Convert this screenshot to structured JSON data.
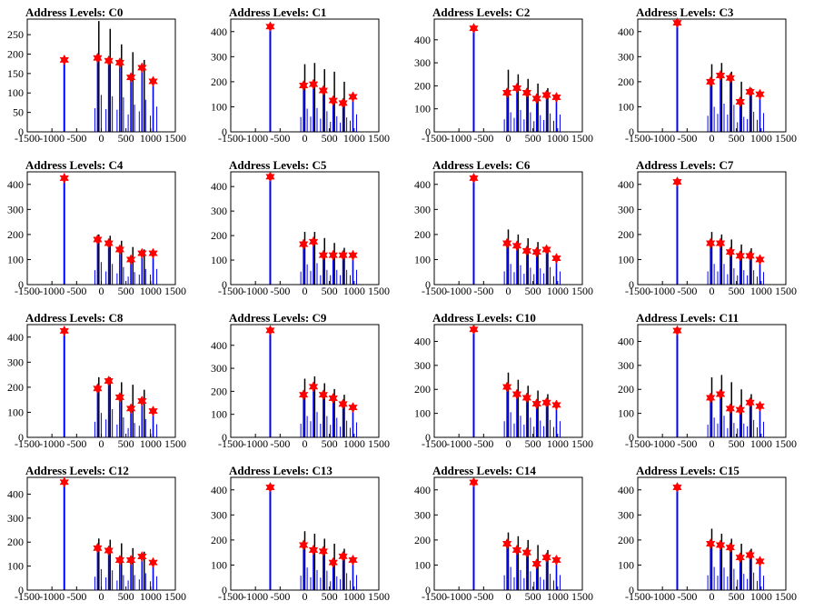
{
  "chart_data": [
    {
      "type": "histogram",
      "title": "Address Levels: C0",
      "xlim": [
        -1500,
        1500
      ],
      "ylim": [
        0,
        290
      ],
      "xticks": [
        -1500,
        -1000,
        -500,
        0,
        500,
        1000,
        1500
      ],
      "yticks": [
        0,
        50,
        100,
        150,
        200,
        250
      ],
      "peaks": [
        {
          "x": -750,
          "y": 185
        },
        {
          "x": -75,
          "y": 190
        },
        {
          "x": 150,
          "y": 183
        },
        {
          "x": 375,
          "y": 178
        },
        {
          "x": 600,
          "y": 140
        },
        {
          "x": 825,
          "y": 165
        },
        {
          "x": 1050,
          "y": 130
        }
      ],
      "black_spikes": [
        {
          "x": -50,
          "y": 285
        },
        {
          "x": 180,
          "y": 265
        },
        {
          "x": 410,
          "y": 225
        },
        {
          "x": 640,
          "y": 205
        },
        {
          "x": 870,
          "y": 185
        }
      ]
    },
    {
      "type": "histogram",
      "title": "Address Levels: C1",
      "xlim": [
        -1500,
        1500
      ],
      "ylim": [
        0,
        450
      ],
      "xticks": [
        -1500,
        -1000,
        -500,
        0,
        500,
        1000,
        1500
      ],
      "yticks": [
        0,
        100,
        200,
        300,
        400
      ],
      "peaks": [
        {
          "x": -700,
          "y": 420
        },
        {
          "x": -25,
          "y": 185
        },
        {
          "x": 175,
          "y": 190
        },
        {
          "x": 375,
          "y": 165
        },
        {
          "x": 575,
          "y": 125
        },
        {
          "x": 775,
          "y": 115
        },
        {
          "x": 975,
          "y": 140
        }
      ],
      "black_spikes": [
        {
          "x": 0,
          "y": 270
        },
        {
          "x": 200,
          "y": 275
        },
        {
          "x": 400,
          "y": 250
        },
        {
          "x": 600,
          "y": 240
        },
        {
          "x": 800,
          "y": 200
        }
      ]
    },
    {
      "type": "histogram",
      "title": "Address Levels: C2",
      "xlim": [
        -1500,
        1500
      ],
      "ylim": [
        0,
        490
      ],
      "xticks": [
        -1500,
        -1000,
        -500,
        0,
        500,
        1000,
        1500
      ],
      "yticks": [
        0,
        100,
        200,
        300,
        400
      ],
      "peaks": [
        {
          "x": -700,
          "y": 450
        },
        {
          "x": -25,
          "y": 170
        },
        {
          "x": 175,
          "y": 190
        },
        {
          "x": 375,
          "y": 170
        },
        {
          "x": 575,
          "y": 145
        },
        {
          "x": 775,
          "y": 160
        },
        {
          "x": 975,
          "y": 150
        }
      ],
      "black_spikes": [
        {
          "x": 0,
          "y": 270
        },
        {
          "x": 200,
          "y": 250
        },
        {
          "x": 400,
          "y": 230
        },
        {
          "x": 600,
          "y": 210
        },
        {
          "x": 800,
          "y": 190
        }
      ]
    },
    {
      "type": "histogram",
      "title": "Address Levels: C3",
      "xlim": [
        -1500,
        1500
      ],
      "ylim": [
        0,
        450
      ],
      "xticks": [
        -1500,
        -1000,
        -500,
        0,
        500,
        1000,
        1500
      ],
      "yticks": [
        0,
        100,
        200,
        300,
        400
      ],
      "peaks": [
        {
          "x": -700,
          "y": 435
        },
        {
          "x": -25,
          "y": 200
        },
        {
          "x": 175,
          "y": 225
        },
        {
          "x": 375,
          "y": 215
        },
        {
          "x": 575,
          "y": 120
        },
        {
          "x": 775,
          "y": 160
        },
        {
          "x": 975,
          "y": 150
        }
      ],
      "black_spikes": [
        {
          "x": 0,
          "y": 270
        },
        {
          "x": 200,
          "y": 275
        },
        {
          "x": 400,
          "y": 240
        },
        {
          "x": 600,
          "y": 200
        },
        {
          "x": 800,
          "y": 175
        }
      ]
    },
    {
      "type": "histogram",
      "title": "Address Levels: C4",
      "xlim": [
        -1500,
        1500
      ],
      "ylim": [
        0,
        450
      ],
      "xticks": [
        -1500,
        -1000,
        -500,
        0,
        500,
        1000,
        1500
      ],
      "yticks": [
        0,
        100,
        200,
        300,
        400
      ],
      "peaks": [
        {
          "x": -750,
          "y": 425
        },
        {
          "x": -75,
          "y": 180
        },
        {
          "x": 150,
          "y": 165
        },
        {
          "x": 375,
          "y": 140
        },
        {
          "x": 600,
          "y": 100
        },
        {
          "x": 825,
          "y": 125
        },
        {
          "x": 1050,
          "y": 125
        }
      ],
      "black_spikes": [
        {
          "x": -50,
          "y": 200
        },
        {
          "x": 180,
          "y": 195
        },
        {
          "x": 410,
          "y": 175
        },
        {
          "x": 640,
          "y": 150
        },
        {
          "x": 870,
          "y": 140
        }
      ]
    },
    {
      "type": "histogram",
      "title": "Address Levels: C5",
      "xlim": [
        -1500,
        1500
      ],
      "ylim": [
        0,
        460
      ],
      "xticks": [
        -1500,
        -1000,
        -500,
        0,
        500,
        1000,
        1500
      ],
      "yticks": [
        0,
        100,
        200,
        300,
        400
      ],
      "peaks": [
        {
          "x": -700,
          "y": 440
        },
        {
          "x": -25,
          "y": 165
        },
        {
          "x": 175,
          "y": 175
        },
        {
          "x": 375,
          "y": 120
        },
        {
          "x": 575,
          "y": 120
        },
        {
          "x": 775,
          "y": 120
        },
        {
          "x": 975,
          "y": 120
        }
      ],
      "black_spikes": [
        {
          "x": 0,
          "y": 215
        },
        {
          "x": 200,
          "y": 215
        },
        {
          "x": 400,
          "y": 190
        },
        {
          "x": 600,
          "y": 170
        },
        {
          "x": 800,
          "y": 150
        }
      ]
    },
    {
      "type": "histogram",
      "title": "Address Levels: C6",
      "xlim": [
        -1500,
        1500
      ],
      "ylim": [
        0,
        450
      ],
      "xticks": [
        -1500,
        -1000,
        -500,
        0,
        500,
        1000,
        1500
      ],
      "yticks": [
        0,
        100,
        200,
        300,
        400
      ],
      "peaks": [
        {
          "x": -700,
          "y": 425
        },
        {
          "x": -25,
          "y": 165
        },
        {
          "x": 175,
          "y": 155
        },
        {
          "x": 375,
          "y": 135
        },
        {
          "x": 575,
          "y": 130
        },
        {
          "x": 775,
          "y": 140
        },
        {
          "x": 975,
          "y": 105
        }
      ],
      "black_spikes": [
        {
          "x": 0,
          "y": 220
        },
        {
          "x": 200,
          "y": 200
        },
        {
          "x": 400,
          "y": 185
        },
        {
          "x": 600,
          "y": 170
        },
        {
          "x": 800,
          "y": 150
        }
      ]
    },
    {
      "type": "histogram",
      "title": "Address Levels: C7",
      "xlim": [
        -1500,
        1500
      ],
      "ylim": [
        0,
        450
      ],
      "xticks": [
        -1500,
        -1000,
        -500,
        0,
        500,
        1000,
        1500
      ],
      "yticks": [
        0,
        100,
        200,
        300,
        400
      ],
      "peaks": [
        {
          "x": -700,
          "y": 410
        },
        {
          "x": -25,
          "y": 165
        },
        {
          "x": 175,
          "y": 165
        },
        {
          "x": 375,
          "y": 130
        },
        {
          "x": 575,
          "y": 115
        },
        {
          "x": 775,
          "y": 115
        },
        {
          "x": 975,
          "y": 100
        }
      ],
      "black_spikes": [
        {
          "x": 0,
          "y": 210
        },
        {
          "x": 200,
          "y": 200
        },
        {
          "x": 400,
          "y": 180
        },
        {
          "x": 600,
          "y": 160
        },
        {
          "x": 800,
          "y": 145
        }
      ]
    },
    {
      "type": "histogram",
      "title": "Address Levels: C8",
      "xlim": [
        -1500,
        1500
      ],
      "ylim": [
        0,
        450
      ],
      "xticks": [
        -1500,
        -1000,
        -500,
        0,
        500,
        1000,
        1500
      ],
      "yticks": [
        0,
        100,
        200,
        300,
        400
      ],
      "peaks": [
        {
          "x": -750,
          "y": 425
        },
        {
          "x": -75,
          "y": 195
        },
        {
          "x": 150,
          "y": 225
        },
        {
          "x": 375,
          "y": 160
        },
        {
          "x": 600,
          "y": 115
        },
        {
          "x": 825,
          "y": 145
        },
        {
          "x": 1050,
          "y": 105
        }
      ],
      "black_spikes": [
        {
          "x": -50,
          "y": 240
        },
        {
          "x": 180,
          "y": 240
        },
        {
          "x": 410,
          "y": 220
        },
        {
          "x": 640,
          "y": 210
        },
        {
          "x": 870,
          "y": 190
        }
      ]
    },
    {
      "type": "histogram",
      "title": "Address Levels: C9",
      "xlim": [
        -1500,
        1500
      ],
      "ylim": [
        0,
        490
      ],
      "xticks": [
        -1500,
        -1000,
        -500,
        0,
        500,
        1000,
        1500
      ],
      "yticks": [
        0,
        100,
        200,
        300,
        400
      ],
      "peaks": [
        {
          "x": -700,
          "y": 465
        },
        {
          "x": -25,
          "y": 185
        },
        {
          "x": 175,
          "y": 220
        },
        {
          "x": 375,
          "y": 185
        },
        {
          "x": 575,
          "y": 170
        },
        {
          "x": 775,
          "y": 145
        },
        {
          "x": 975,
          "y": 130
        }
      ],
      "black_spikes": [
        {
          "x": 0,
          "y": 255
        },
        {
          "x": 200,
          "y": 265
        },
        {
          "x": 400,
          "y": 235
        },
        {
          "x": 600,
          "y": 210
        },
        {
          "x": 800,
          "y": 185
        }
      ]
    },
    {
      "type": "histogram",
      "title": "Address Levels: C10",
      "xlim": [
        -1500,
        1500
      ],
      "ylim": [
        0,
        470
      ],
      "xticks": [
        -1500,
        -1000,
        -500,
        0,
        500,
        1000,
        1500
      ],
      "yticks": [
        0,
        100,
        200,
        300,
        400
      ],
      "peaks": [
        {
          "x": -700,
          "y": 450
        },
        {
          "x": -25,
          "y": 210
        },
        {
          "x": 175,
          "y": 180
        },
        {
          "x": 375,
          "y": 165
        },
        {
          "x": 575,
          "y": 140
        },
        {
          "x": 775,
          "y": 145
        },
        {
          "x": 975,
          "y": 135
        }
      ],
      "black_spikes": [
        {
          "x": 0,
          "y": 270
        },
        {
          "x": 200,
          "y": 240
        },
        {
          "x": 400,
          "y": 215
        },
        {
          "x": 600,
          "y": 195
        },
        {
          "x": 800,
          "y": 180
        }
      ]
    },
    {
      "type": "histogram",
      "title": "Address Levels: C11",
      "xlim": [
        -1500,
        1500
      ],
      "ylim": [
        0,
        470
      ],
      "xticks": [
        -1500,
        -1000,
        -500,
        0,
        500,
        1000,
        1500
      ],
      "yticks": [
        0,
        100,
        200,
        300,
        400
      ],
      "peaks": [
        {
          "x": -700,
          "y": 445
        },
        {
          "x": -25,
          "y": 165
        },
        {
          "x": 175,
          "y": 180
        },
        {
          "x": 375,
          "y": 120
        },
        {
          "x": 575,
          "y": 115
        },
        {
          "x": 775,
          "y": 145
        },
        {
          "x": 975,
          "y": 130
        }
      ],
      "black_spikes": [
        {
          "x": 0,
          "y": 250
        },
        {
          "x": 200,
          "y": 260
        },
        {
          "x": 400,
          "y": 230
        },
        {
          "x": 600,
          "y": 200
        },
        {
          "x": 800,
          "y": 180
        }
      ]
    },
    {
      "type": "histogram",
      "title": "Address Levels: C12",
      "xlim": [
        -1500,
        1500
      ],
      "ylim": [
        0,
        470
      ],
      "xticks": [
        -1500,
        -1000,
        -500,
        0,
        500,
        1000,
        1500
      ],
      "yticks": [
        0,
        100,
        200,
        300,
        400
      ],
      "peaks": [
        {
          "x": -750,
          "y": 450
        },
        {
          "x": -75,
          "y": 175
        },
        {
          "x": 150,
          "y": 165
        },
        {
          "x": 375,
          "y": 125
        },
        {
          "x": 600,
          "y": 125
        },
        {
          "x": 825,
          "y": 140
        },
        {
          "x": 1050,
          "y": 115
        }
      ],
      "black_spikes": [
        {
          "x": -50,
          "y": 215
        },
        {
          "x": 180,
          "y": 210
        },
        {
          "x": 410,
          "y": 195
        },
        {
          "x": 640,
          "y": 175
        },
        {
          "x": 870,
          "y": 160
        }
      ]
    },
    {
      "type": "histogram",
      "title": "Address Levels: C13",
      "xlim": [
        -1500,
        1500
      ],
      "ylim": [
        0,
        450
      ],
      "xticks": [
        -1500,
        -1000,
        -500,
        0,
        500,
        1000,
        1500
      ],
      "yticks": [
        0,
        100,
        200,
        300,
        400
      ],
      "peaks": [
        {
          "x": -700,
          "y": 410
        },
        {
          "x": -25,
          "y": 180
        },
        {
          "x": 175,
          "y": 160
        },
        {
          "x": 375,
          "y": 155
        },
        {
          "x": 575,
          "y": 110
        },
        {
          "x": 775,
          "y": 135
        },
        {
          "x": 975,
          "y": 120
        }
      ],
      "black_spikes": [
        {
          "x": 0,
          "y": 235
        },
        {
          "x": 200,
          "y": 225
        },
        {
          "x": 400,
          "y": 205
        },
        {
          "x": 600,
          "y": 185
        },
        {
          "x": 800,
          "y": 165
        }
      ]
    },
    {
      "type": "histogram",
      "title": "Address Levels: C14",
      "xlim": [
        -1500,
        1500
      ],
      "ylim": [
        0,
        450
      ],
      "xticks": [
        -1500,
        -1000,
        -500,
        0,
        500,
        1000,
        1500
      ],
      "yticks": [
        0,
        100,
        200,
        300,
        400
      ],
      "peaks": [
        {
          "x": -700,
          "y": 430
        },
        {
          "x": -25,
          "y": 185
        },
        {
          "x": 175,
          "y": 160
        },
        {
          "x": 375,
          "y": 150
        },
        {
          "x": 575,
          "y": 105
        },
        {
          "x": 775,
          "y": 130
        },
        {
          "x": 975,
          "y": 120
        }
      ],
      "black_spikes": [
        {
          "x": 0,
          "y": 230
        },
        {
          "x": 200,
          "y": 215
        },
        {
          "x": 400,
          "y": 200
        },
        {
          "x": 600,
          "y": 180
        },
        {
          "x": 800,
          "y": 160
        }
      ]
    },
    {
      "type": "histogram",
      "title": "Address Levels: C15",
      "xlim": [
        -1500,
        1500
      ],
      "ylim": [
        0,
        450
      ],
      "xticks": [
        -1500,
        -1000,
        -500,
        0,
        500,
        1000,
        1500
      ],
      "yticks": [
        0,
        100,
        200,
        300,
        400
      ],
      "peaks": [
        {
          "x": -700,
          "y": 410
        },
        {
          "x": -25,
          "y": 185
        },
        {
          "x": 175,
          "y": 180
        },
        {
          "x": 375,
          "y": 170
        },
        {
          "x": 575,
          "y": 130
        },
        {
          "x": 775,
          "y": 140
        },
        {
          "x": 975,
          "y": 115
        }
      ],
      "black_spikes": [
        {
          "x": 0,
          "y": 245
        },
        {
          "x": 200,
          "y": 225
        },
        {
          "x": 400,
          "y": 205
        },
        {
          "x": 600,
          "y": 185
        },
        {
          "x": 800,
          "y": 165
        }
      ]
    }
  ],
  "colors": {
    "histogram": "#0000ff",
    "overflow": "#000000",
    "marker": "#ff0000",
    "frame": "#000000"
  }
}
